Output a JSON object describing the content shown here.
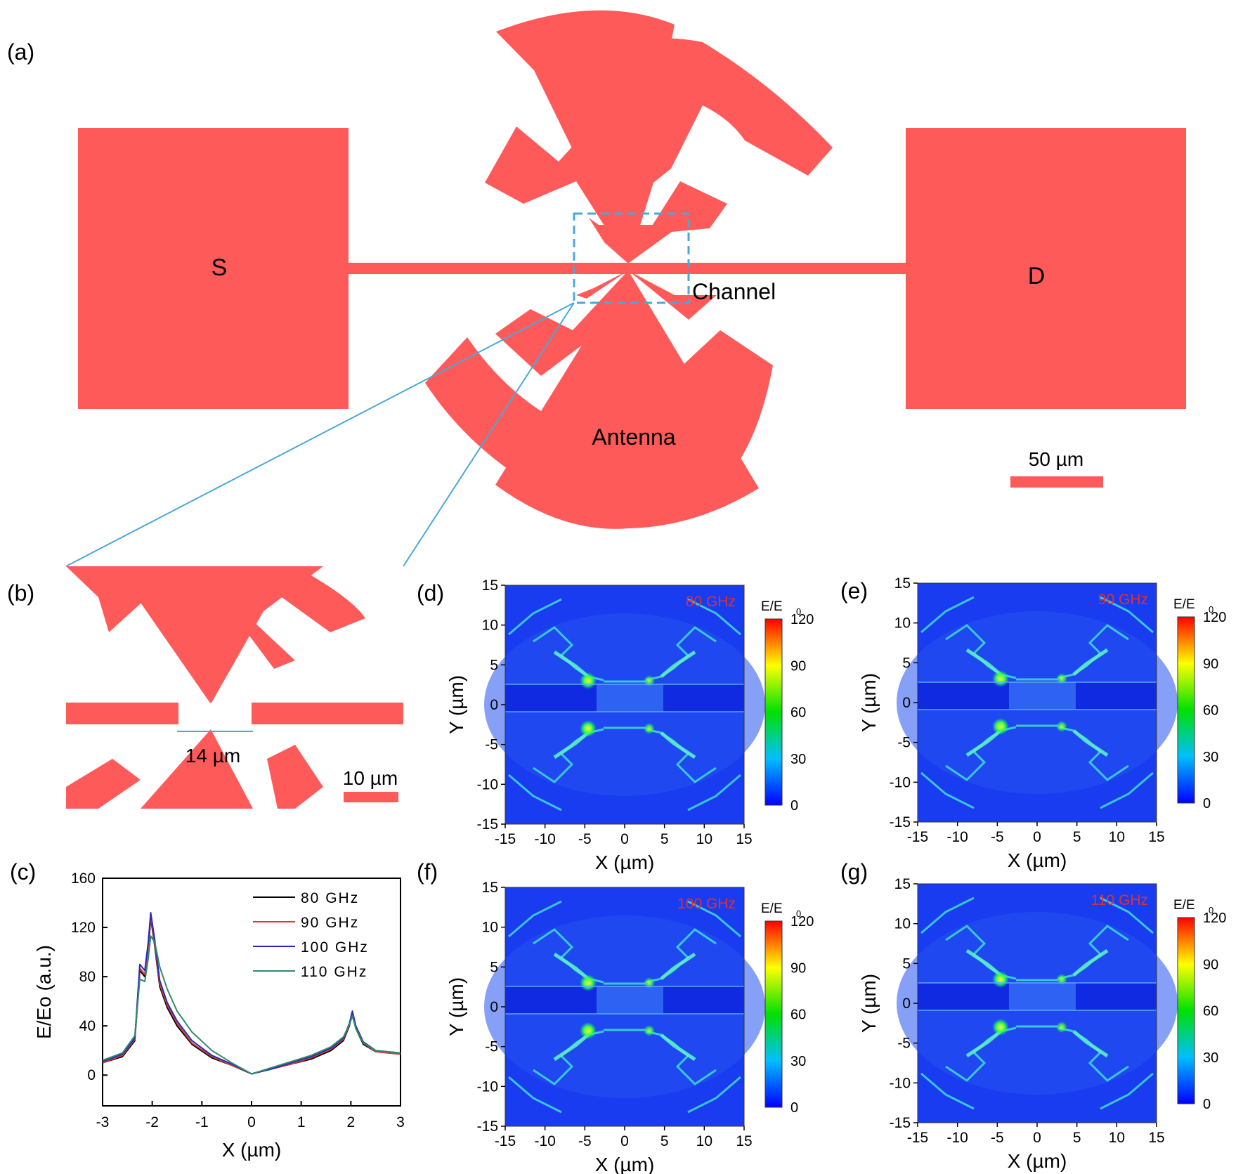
{
  "panel_labels": {
    "a": "(a)",
    "b": "(b)",
    "c": "(c)",
    "d": "(d)",
    "e": "(e)",
    "f": "(f)",
    "g": "(g)"
  },
  "device": {
    "source_label": "S",
    "drain_label": "D",
    "channel_label": "Channel",
    "antenna_label": "Antenna",
    "scale_bar_label": "50 µm",
    "color": "#ff5a5a",
    "inset_box_color": "#4aa8d8"
  },
  "inset": {
    "gap_label": "14 µm",
    "scale_bar_label": "10 µm"
  },
  "chart_data": [
    {
      "id": "c",
      "type": "line",
      "xlabel": "X (µm)",
      "ylabel": "E/Eo (a.u.)",
      "xlim": [
        -3,
        3
      ],
      "ylim": [
        -25,
        160
      ],
      "xticks": [
        -3,
        -2,
        -1,
        0,
        1,
        2,
        3
      ],
      "yticks": [
        0,
        40,
        80,
        120,
        160
      ],
      "legend_position": "top-right",
      "series": [
        {
          "name": "80 GHz",
          "color": "#000000",
          "x": [
            -3,
            -2.6,
            -2.35,
            -2.25,
            -2.15,
            -2.08,
            -2.03,
            -1.95,
            -1.85,
            -1.7,
            -1.5,
            -1.2,
            -0.8,
            -0.4,
            0,
            0.4,
            0.8,
            1.2,
            1.6,
            1.85,
            1.97,
            2.03,
            2.1,
            2.25,
            2.5,
            3
          ],
          "y": [
            10,
            15,
            28,
            85,
            80,
            100,
            128,
            105,
            72,
            55,
            40,
            25,
            14,
            8,
            1,
            5,
            9,
            13,
            20,
            28,
            40,
            50,
            38,
            25,
            19,
            17
          ]
        },
        {
          "name": "90 GHz",
          "color": "#d93b3b",
          "x": [
            -3,
            -2.6,
            -2.35,
            -2.25,
            -2.15,
            -2.08,
            -2.03,
            -1.95,
            -1.85,
            -1.7,
            -1.5,
            -1.2,
            -0.8,
            -0.4,
            0,
            0.4,
            0.8,
            1.2,
            1.6,
            1.85,
            1.97,
            2.03,
            2.1,
            2.25,
            2.5,
            3
          ],
          "y": [
            10,
            16,
            29,
            87,
            82,
            102,
            130,
            107,
            74,
            57,
            42,
            26,
            15,
            8,
            1,
            5,
            9,
            14,
            21,
            29,
            41,
            51,
            39,
            26,
            19,
            17
          ]
        },
        {
          "name": "100 GHz",
          "color": "#2a2ab8",
          "x": [
            -3,
            -2.6,
            -2.35,
            -2.25,
            -2.15,
            -2.08,
            -2.03,
            -1.95,
            -1.85,
            -1.7,
            -1.5,
            -1.2,
            -0.8,
            -0.4,
            0,
            0.4,
            0.8,
            1.2,
            1.6,
            1.85,
            1.97,
            2.03,
            2.1,
            2.25,
            2.5,
            3
          ],
          "y": [
            11,
            17,
            30,
            90,
            85,
            108,
            132,
            110,
            77,
            59,
            44,
            28,
            16,
            9,
            1,
            5,
            10,
            15,
            22,
            30,
            42,
            52,
            40,
            27,
            20,
            18
          ]
        },
        {
          "name": "110 GHz",
          "color": "#2e8b6e",
          "x": [
            -3,
            -2.6,
            -2.35,
            -2.25,
            -2.15,
            -2.08,
            -2.03,
            -1.95,
            -1.85,
            -1.7,
            -1.5,
            -1.2,
            -0.8,
            -0.4,
            0,
            0.4,
            0.8,
            1.2,
            1.6,
            1.85,
            1.97,
            2.03,
            2.1,
            2.25,
            2.5,
            3
          ],
          "y": [
            12,
            18,
            32,
            78,
            76,
            95,
            113,
            108,
            88,
            70,
            52,
            35,
            20,
            10,
            1,
            6,
            11,
            16,
            23,
            31,
            41,
            48,
            38,
            26,
            20,
            18
          ]
        }
      ]
    },
    {
      "id": "d",
      "type": "heatmap",
      "title": "80 GHz",
      "xlabel": "X (µm)",
      "ylabel": "Y (µm)",
      "xlim": [
        -15,
        15
      ],
      "ylim": [
        -15,
        15
      ],
      "xticks": [
        -15,
        -10,
        -5,
        0,
        5,
        10,
        15
      ],
      "yticks": [
        -15,
        -10,
        -5,
        0,
        5,
        10,
        15
      ],
      "colorbar": {
        "label": "E/E",
        "label_sub": "0",
        "ticks": [
          0,
          30,
          60,
          90,
          120
        ],
        "range": [
          0,
          120
        ]
      }
    },
    {
      "id": "e",
      "type": "heatmap",
      "title": "90 GHz",
      "xlabel": "X (µm)",
      "ylabel": "Y (µm)",
      "xlim": [
        -15,
        15
      ],
      "ylim": [
        -15,
        15
      ],
      "xticks": [
        -15,
        -10,
        -5,
        0,
        5,
        10,
        15
      ],
      "yticks": [
        -15,
        -10,
        -5,
        0,
        5,
        10,
        15
      ],
      "colorbar": {
        "label": "E/E",
        "label_sub": "0",
        "ticks": [
          0,
          30,
          60,
          90,
          120
        ],
        "range": [
          0,
          120
        ]
      }
    },
    {
      "id": "f",
      "type": "heatmap",
      "title": "100 GHz",
      "xlabel": "X (µm)",
      "ylabel": "Y (µm)",
      "xlim": [
        -15,
        15
      ],
      "ylim": [
        -15,
        15
      ],
      "xticks": [
        -15,
        -10,
        -5,
        0,
        5,
        10,
        15
      ],
      "yticks": [
        -15,
        -10,
        -5,
        0,
        5,
        10,
        15
      ],
      "colorbar": {
        "label": "E/E",
        "label_sub": "0",
        "ticks": [
          0,
          30,
          60,
          90,
          120
        ],
        "range": [
          0,
          120
        ]
      }
    },
    {
      "id": "g",
      "type": "heatmap",
      "title": "110 GHz",
      "xlabel": "X (µm)",
      "ylabel": "Y (µm)",
      "xlim": [
        -15,
        15
      ],
      "ylim": [
        -15,
        15
      ],
      "xticks": [
        -15,
        -10,
        -5,
        0,
        5,
        10,
        15
      ],
      "yticks": [
        -15,
        -10,
        -5,
        0,
        5,
        10,
        15
      ],
      "colorbar": {
        "label": "E/E",
        "label_sub": "0",
        "ticks": [
          0,
          30,
          60,
          90,
          120
        ],
        "range": [
          0,
          120
        ]
      }
    }
  ]
}
